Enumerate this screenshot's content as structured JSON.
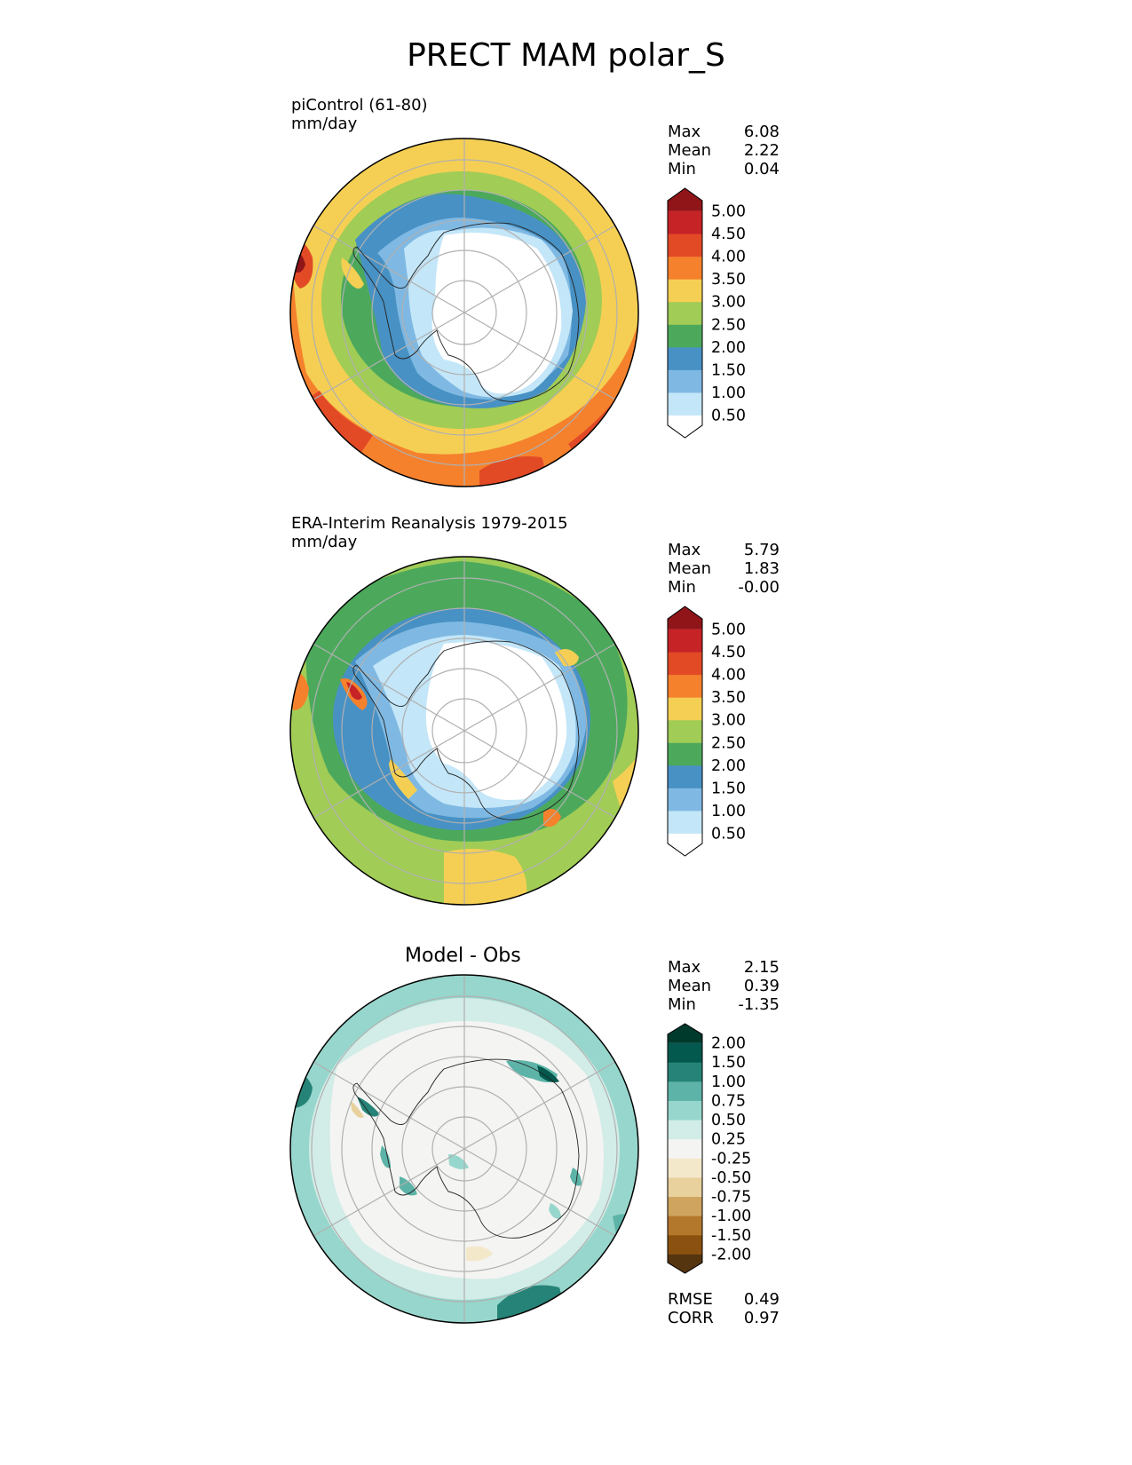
{
  "title": "PRECT MAM polar_S",
  "panels": [
    {
      "id": "test",
      "name_line": "piControl (61-80)",
      "units": "mm/day",
      "stats": {
        "Max": "6.08",
        "Mean": "2.22",
        "Min": "0.04"
      },
      "colorbar": {
        "levels": [
          "0.50",
          "1.00",
          "1.50",
          "2.00",
          "2.50",
          "3.00",
          "3.50",
          "4.00",
          "4.50",
          "5.00"
        ],
        "colors": [
          "#ffffff",
          "#c3e6f8",
          "#7fb9e3",
          "#4891c4",
          "#4ca95c",
          "#a1cc56",
          "#f5cf53",
          "#f5812d",
          "#e24a26",
          "#c62327",
          "#8f1519"
        ]
      }
    },
    {
      "id": "reference",
      "name_line": "ERA-Interim Reanalysis 1979-2015",
      "units": "mm/day",
      "stats": {
        "Max": "5.79",
        "Mean": "1.83",
        "Min": "-0.00"
      },
      "colorbar": {
        "levels": [
          "0.50",
          "1.00",
          "1.50",
          "2.00",
          "2.50",
          "3.00",
          "3.50",
          "4.00",
          "4.50",
          "5.00"
        ],
        "colors": [
          "#ffffff",
          "#c3e6f8",
          "#7fb9e3",
          "#4891c4",
          "#4ca95c",
          "#a1cc56",
          "#f5cf53",
          "#f5812d",
          "#e24a26",
          "#c62327",
          "#8f1519"
        ]
      }
    },
    {
      "id": "diff",
      "title": "Model - Obs",
      "stats": {
        "Max": "2.15",
        "Mean": "0.39",
        "Min": "-1.35"
      },
      "metrics": {
        "RMSE": "0.49",
        "CORR": "0.97"
      },
      "colorbar": {
        "levels": [
          "-2.00",
          "-1.50",
          "-1.00",
          "-0.75",
          "-0.50",
          "-0.25",
          "0.25",
          "0.50",
          "0.75",
          "1.00",
          "1.50",
          "2.00"
        ],
        "colors": [
          "#553410",
          "#8a5110",
          "#b3782c",
          "#cfa45e",
          "#e8d19c",
          "#f4e8cb",
          "#f4f4f2",
          "#d2ece7",
          "#97d6cc",
          "#5db3a7",
          "#268377",
          "#03594d",
          "#003a2c"
        ]
      }
    }
  ],
  "chart_data": {
    "type": "heatmap",
    "projection": "south-polar-stereographic",
    "variable": "PRECT",
    "season": "MAM",
    "region": "polar_S",
    "maps": [
      {
        "label": "piControl (61-80)",
        "units": "mm/day",
        "max": 6.08,
        "mean": 2.22,
        "min": 0.04,
        "levels": [
          0.5,
          1.0,
          1.5,
          2.0,
          2.5,
          3.0,
          3.5,
          4.0,
          4.5,
          5.0
        ]
      },
      {
        "label": "ERA-Interim Reanalysis 1979-2015",
        "units": "mm/day",
        "max": 5.79,
        "mean": 1.83,
        "min": -0.0,
        "levels": [
          0.5,
          1.0,
          1.5,
          2.0,
          2.5,
          3.0,
          3.5,
          4.0,
          4.5,
          5.0
        ]
      },
      {
        "label": "Model - Obs",
        "max": 2.15,
        "mean": 0.39,
        "min": -1.35,
        "rmse": 0.49,
        "corr": 0.97,
        "levels": [
          -2.0,
          -1.5,
          -1.0,
          -0.75,
          -0.5,
          -0.25,
          0.25,
          0.5,
          0.75,
          1.0,
          1.5,
          2.0
        ]
      }
    ]
  }
}
